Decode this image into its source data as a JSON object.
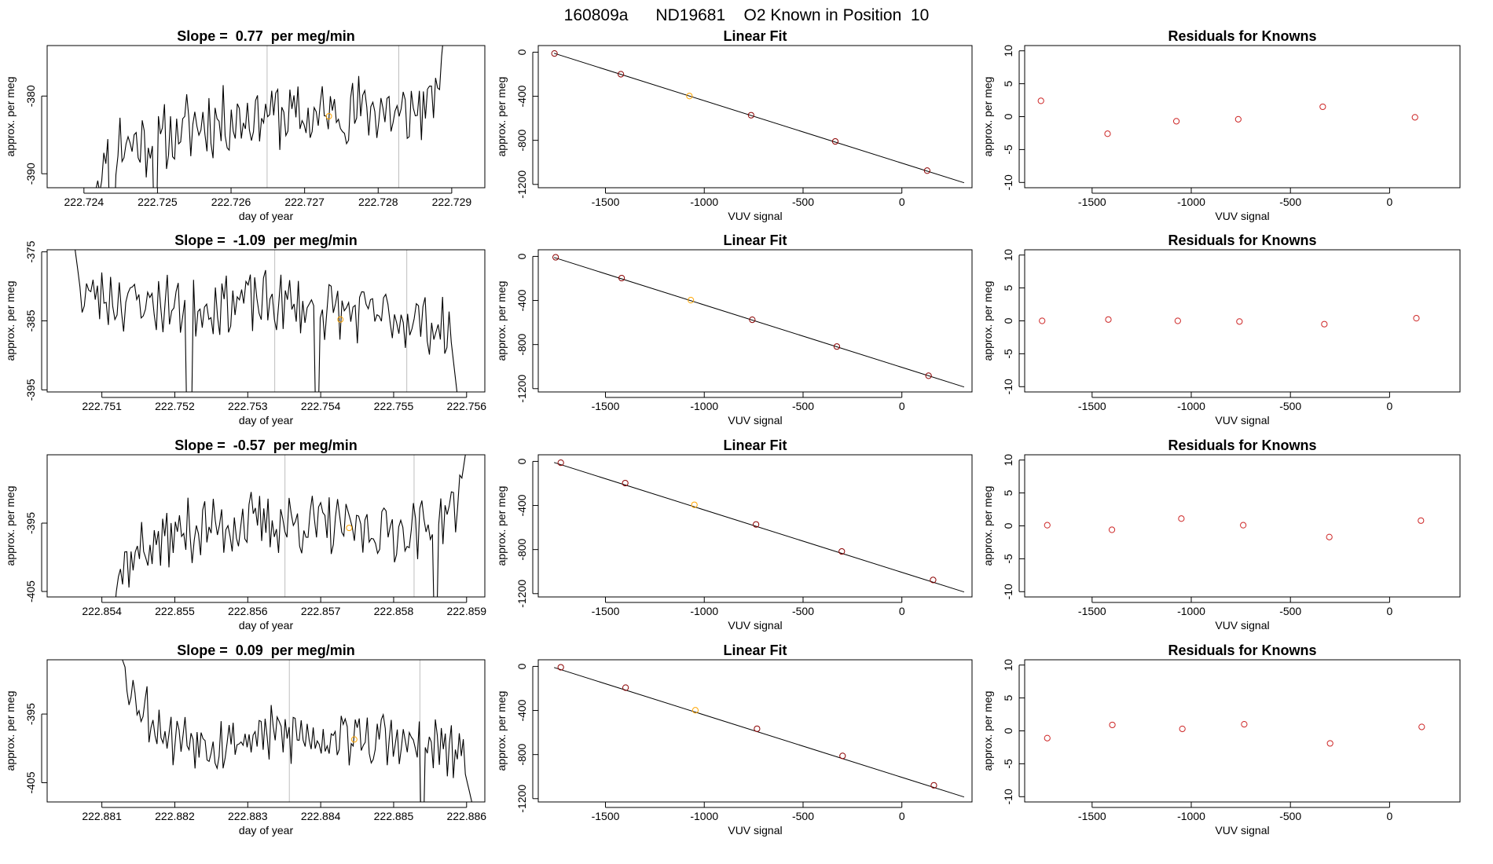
{
  "page_title": "160809a      ND19681    O2 Known in Position  10",
  "colors": {
    "line": "#000000",
    "known_point": "#FFA500",
    "fit_point": "#8B0000",
    "residual_point": "#CD2626",
    "window_marker": "#BEBEBE"
  },
  "chart_data": [
    {
      "type": "line",
      "title": "Slope =  0.77  per meg/min",
      "xlabel": "day of year",
      "ylabel": "approx. per meg",
      "xlim": [
        222.7235,
        222.72945
      ],
      "ylim": [
        -391.8,
        -373.5
      ],
      "xticks": [
        "222.724",
        "222.725",
        "222.726",
        "222.727",
        "222.728",
        "222.729"
      ],
      "yticks": [
        "-380",
        "-390"
      ],
      "window_markers": [
        222.72649,
        222.72828
      ],
      "known_point": {
        "x": 222.72733,
        "y": -382.6
      },
      "trace": {
        "x_start": 222.72405,
        "x_end": 222.729,
        "spikes_low": [
          222.72438,
          222.72498
        ],
        "n": 181,
        "seed": 11,
        "keys": [
          [
            0,
            -397
          ],
          [
            0.05,
            -386
          ],
          [
            0.2,
            -386
          ],
          [
            0.3,
            -383.6
          ],
          [
            0.4,
            -383
          ],
          [
            0.5,
            -382
          ],
          [
            0.6,
            -383
          ],
          [
            0.7,
            -382
          ],
          [
            0.82,
            -381.5
          ],
          [
            0.85,
            -383
          ],
          [
            0.94,
            -381
          ],
          [
            0.96,
            -381
          ],
          [
            1,
            -361
          ]
        ]
      }
    },
    {
      "type": "scatter",
      "title": "Linear Fit",
      "xlabel": "VUV signal",
      "ylabel": "approx. per meg",
      "xlim": [
        -1840,
        355
      ],
      "ylim": [
        -1230,
        60
      ],
      "xticks": [
        "-1500",
        "-1000",
        "-500",
        "0"
      ],
      "yticks": [
        "0",
        "-400",
        "-800",
        "-1200"
      ],
      "fit_line": {
        "x": [
          -1760,
          315
        ],
        "y": [
          -10,
          -1185
        ]
      },
      "points": [
        {
          "x": -1758,
          "y": -12
        },
        {
          "x": -1422,
          "y": -200
        },
        {
          "x": -1075,
          "y": -398,
          "known": true
        },
        {
          "x": -763,
          "y": -572
        },
        {
          "x": -337,
          "y": -810
        },
        {
          "x": 128,
          "y": -1075
        }
      ]
    },
    {
      "type": "scatter",
      "title": "Residuals for Knowns",
      "xlabel": "VUV signal",
      "ylabel": "approx. per meg",
      "xlim": [
        -1840,
        355
      ],
      "ylim": [
        -10.8,
        10.8
      ],
      "xticks": [
        "-1500",
        "-1000",
        "-500",
        "0"
      ],
      "yticks": [
        "10",
        "5",
        "0",
        "-5",
        "-10"
      ],
      "points": [
        {
          "x": -1758,
          "y": 2.4
        },
        {
          "x": -1422,
          "y": -2.6
        },
        {
          "x": -1075,
          "y": -0.7
        },
        {
          "x": -763,
          "y": -0.4
        },
        {
          "x": -337,
          "y": 1.5
        },
        {
          "x": 128,
          "y": -0.1
        }
      ]
    },
    {
      "type": "line",
      "title": "Slope =  -1.09  per meg/min",
      "xlabel": "day of year",
      "ylabel": "approx. per meg",
      "xlim": [
        222.75025,
        222.75625
      ],
      "ylim": [
        -395.3,
        -374.7
      ],
      "xticks": [
        "222.751",
        "222.752",
        "222.753",
        "222.754",
        "222.755",
        "222.756"
      ],
      "yticks": [
        "-375",
        "-385",
        "-395"
      ],
      "window_markers": [
        222.75337,
        222.75518
      ],
      "known_point": {
        "x": 222.75427,
        "y": -384.8
      },
      "trace": {
        "x_start": 222.75055,
        "x_end": 222.75594,
        "spikes_low": [
          222.7522,
          222.75396
        ],
        "n": 181,
        "seed": 23,
        "keys": [
          [
            0,
            -368
          ],
          [
            0.03,
            -381
          ],
          [
            0.15,
            -382
          ],
          [
            0.3,
            -383
          ],
          [
            0.45,
            -382
          ],
          [
            0.6,
            -383
          ],
          [
            0.75,
            -384
          ],
          [
            0.9,
            -385
          ],
          [
            0.97,
            -387
          ],
          [
            1,
            -402
          ]
        ]
      }
    },
    {
      "type": "scatter",
      "title": "Linear Fit",
      "xlabel": "VUV signal",
      "ylabel": "approx. per meg",
      "xlim": [
        -1840,
        355
      ],
      "ylim": [
        -1230,
        60
      ],
      "xticks": [
        "-1500",
        "-1000",
        "-500",
        "0"
      ],
      "yticks": [
        "0",
        "-400",
        "-800",
        "-1200"
      ],
      "fit_line": {
        "x": [
          -1760,
          315
        ],
        "y": [
          -10,
          -1185
        ]
      },
      "points": [
        {
          "x": -1752,
          "y": -8
        },
        {
          "x": -1418,
          "y": -197
        },
        {
          "x": -1068,
          "y": -397,
          "known": true
        },
        {
          "x": -757,
          "y": -575
        },
        {
          "x": -329,
          "y": -818
        },
        {
          "x": 135,
          "y": -1083
        }
      ]
    },
    {
      "type": "scatter",
      "title": "Residuals for Knowns",
      "xlabel": "VUV signal",
      "ylabel": "approx. per meg",
      "xlim": [
        -1840,
        355
      ],
      "ylim": [
        -10.8,
        10.8
      ],
      "xticks": [
        "-1500",
        "-1000",
        "-500",
        "0"
      ],
      "yticks": [
        "10",
        "5",
        "0",
        "-5",
        "-10"
      ],
      "points": [
        {
          "x": -1752,
          "y": 0.0
        },
        {
          "x": -1418,
          "y": 0.2
        },
        {
          "x": -1068,
          "y": 0.0
        },
        {
          "x": -757,
          "y": -0.1
        },
        {
          "x": -329,
          "y": -0.5
        },
        {
          "x": 135,
          "y": 0.4
        }
      ]
    },
    {
      "type": "line",
      "title": "Slope =  -0.57  per meg/min",
      "xlabel": "day of year",
      "ylabel": "approx. per meg",
      "xlim": [
        222.85325,
        222.85925
      ],
      "ylim": [
        -405.8,
        -385.0
      ],
      "xticks": [
        "222.854",
        "222.855",
        "222.856",
        "222.857",
        "222.858",
        "222.859"
      ],
      "yticks": [
        "-395",
        "-405"
      ],
      "window_markers": [
        222.85651,
        222.85828
      ],
      "known_point": {
        "x": 222.85739,
        "y": -395.7
      },
      "trace": {
        "x_start": 222.85388,
        "x_end": 222.85908,
        "spikes_low": [
          222.85858
        ],
        "n": 181,
        "seed": 37,
        "keys": [
          [
            0,
            -412
          ],
          [
            0.07,
            -402
          ],
          [
            0.12,
            -399
          ],
          [
            0.25,
            -396
          ],
          [
            0.4,
            -395
          ],
          [
            0.55,
            -395
          ],
          [
            0.7,
            -396
          ],
          [
            0.85,
            -396
          ],
          [
            0.96,
            -393
          ],
          [
            1,
            -378
          ]
        ]
      }
    },
    {
      "type": "scatter",
      "title": "Linear Fit",
      "xlabel": "VUV signal",
      "ylabel": "approx. per meg",
      "xlim": [
        -1840,
        355
      ],
      "ylim": [
        -1230,
        60
      ],
      "xticks": [
        "-1500",
        "-1000",
        "-500",
        "0"
      ],
      "yticks": [
        "0",
        "-400",
        "-800",
        "-1200"
      ],
      "fit_line": {
        "x": [
          -1760,
          315
        ],
        "y": [
          -10,
          -1185
        ]
      },
      "points": [
        {
          "x": -1726,
          "y": -12
        },
        {
          "x": -1400,
          "y": -197
        },
        {
          "x": -1050,
          "y": -394,
          "known": true
        },
        {
          "x": -738,
          "y": -572
        },
        {
          "x": -304,
          "y": -817
        },
        {
          "x": 158,
          "y": -1076
        }
      ]
    },
    {
      "type": "scatter",
      "title": "Residuals for Knowns",
      "xlabel": "VUV signal",
      "ylabel": "approx. per meg",
      "xlim": [
        -1840,
        355
      ],
      "ylim": [
        -10.8,
        10.8
      ],
      "xticks": [
        "-1500",
        "-1000",
        "-500",
        "0"
      ],
      "yticks": [
        "10",
        "5",
        "0",
        "-5",
        "-10"
      ],
      "points": [
        {
          "x": -1726,
          "y": 0.1
        },
        {
          "x": -1400,
          "y": -0.6
        },
        {
          "x": -1050,
          "y": 1.1
        },
        {
          "x": -738,
          "y": 0.1
        },
        {
          "x": -304,
          "y": -1.7
        },
        {
          "x": 158,
          "y": 0.8
        }
      ]
    },
    {
      "type": "line",
      "title": "Slope =  0.09  per meg/min",
      "xlabel": "day of year",
      "ylabel": "approx. per meg",
      "xlim": [
        222.88025,
        222.88625
      ],
      "ylim": [
        -407.8,
        -387.1
      ],
      "xticks": [
        "222.881",
        "222.882",
        "222.883",
        "222.884",
        "222.885",
        "222.886"
      ],
      "yticks": [
        "-395",
        "-405"
      ],
      "window_markers": [
        222.88357,
        222.88536
      ],
      "known_point": {
        "x": 222.88446,
        "y": -398.7
      },
      "trace": {
        "x_start": 222.88118,
        "x_end": 222.88612,
        "spikes_low": [
          222.88539
        ],
        "n": 181,
        "seed": 53,
        "keys": [
          [
            0,
            -384
          ],
          [
            0.06,
            -393
          ],
          [
            0.15,
            -398
          ],
          [
            0.3,
            -399
          ],
          [
            0.45,
            -398
          ],
          [
            0.6,
            -398
          ],
          [
            0.75,
            -399
          ],
          [
            0.9,
            -400
          ],
          [
            0.96,
            -401
          ],
          [
            1,
            -410
          ]
        ]
      }
    },
    {
      "type": "scatter",
      "title": "Linear Fit",
      "xlabel": "VUV signal",
      "ylabel": "approx. per meg",
      "xlim": [
        -1840,
        355
      ],
      "ylim": [
        -1230,
        60
      ],
      "xticks": [
        "-1500",
        "-1000",
        "-500",
        "0"
      ],
      "yticks": [
        "0",
        "-400",
        "-800",
        "-1200"
      ],
      "fit_line": {
        "x": [
          -1760,
          315
        ],
        "y": [
          -10,
          -1185
        ]
      },
      "points": [
        {
          "x": -1726,
          "y": -8
        },
        {
          "x": -1398,
          "y": -193
        },
        {
          "x": -1045,
          "y": -398,
          "known": true
        },
        {
          "x": -733,
          "y": -566
        },
        {
          "x": -300,
          "y": -812
        },
        {
          "x": 162,
          "y": -1079
        }
      ]
    },
    {
      "type": "scatter",
      "title": "Residuals for Knowns",
      "xlabel": "VUV signal",
      "ylabel": "approx. per meg",
      "xlim": [
        -1840,
        355
      ],
      "ylim": [
        -10.8,
        10.8
      ],
      "xticks": [
        "-1500",
        "-1000",
        "-500",
        "0"
      ],
      "yticks": [
        "10",
        "5",
        "0",
        "-5",
        "-10"
      ],
      "points": [
        {
          "x": -1726,
          "y": -1.1
        },
        {
          "x": -1398,
          "y": 0.9
        },
        {
          "x": -1045,
          "y": 0.3
        },
        {
          "x": -733,
          "y": 1.0
        },
        {
          "x": -300,
          "y": -1.9
        },
        {
          "x": 162,
          "y": 0.6
        }
      ]
    }
  ]
}
